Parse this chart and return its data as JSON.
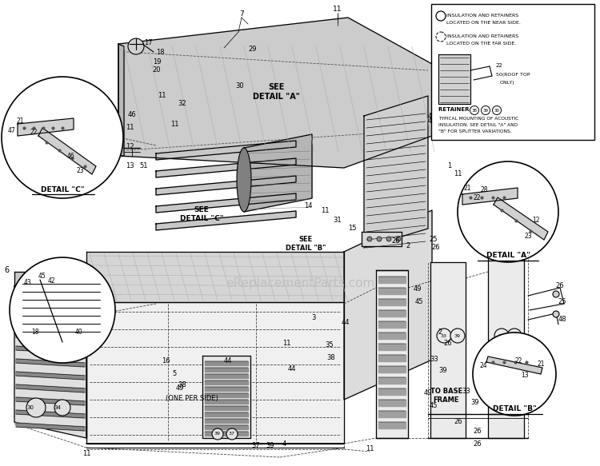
{
  "bg_color": "#ffffff",
  "figsize": [
    7.5,
    5.83
  ],
  "dpi": 100,
  "watermark": "eReplacementParts.com",
  "legend_near": [
    "INSULATION AND RETAINERS",
    "LOCATED ON THE NEAR SIDE."
  ],
  "legend_far": [
    "INSULATION AND RETAINERS",
    "LOCATED ON THE FAR SIDE."
  ],
  "legend_note": [
    "TYPICAL MOUNTING OF ACOUSTIC",
    "INSULATION. SEE DETAIL \"A\" AND",
    "\"B\" FOR SPLITTER VARIATIONS."
  ],
  "retainer_nums": [
    "38",
    "39",
    "30"
  ],
  "detail_c": "DETAIL \"C\"",
  "detail_a": "DETAIL \"A\"",
  "detail_b": "DETAIL \"B\"",
  "see_a": "SEE\nDETAIL \"A\"",
  "see_b": "SEE\nDETAIL \"B\"",
  "see_c": "SEE\nDETAIL \"C\"",
  "to_base": "TO BASE\nFRAME",
  "one_per_side": "(ONE PER SIDE)"
}
